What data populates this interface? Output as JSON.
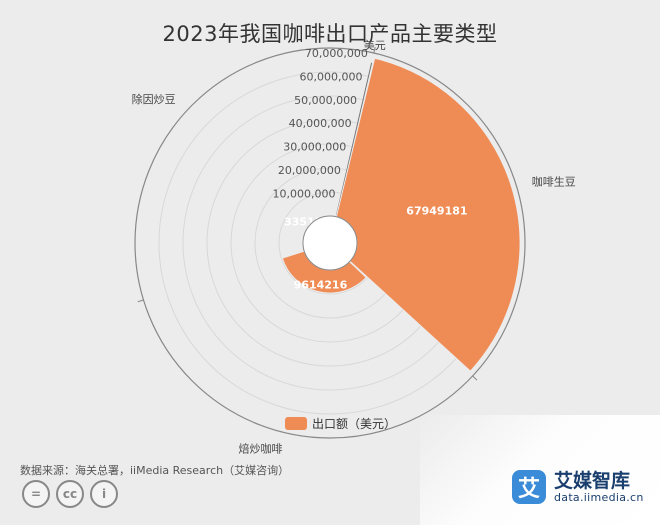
{
  "chart_data": {
    "type": "polar-bar",
    "title": "2023年我国咖啡出口产品主要类型",
    "categories": [
      "咖啡生豆",
      "焙炒咖啡",
      "除因炒豆"
    ],
    "series": [
      {
        "name": "出口额（美元）",
        "values": [
          67949181,
          9614216,
          335159
        ],
        "color": "#ef8b55"
      }
    ],
    "radial_ticks": [
      "0",
      "10,000,000",
      "20,000,000",
      "30,000,000",
      "40,000,000",
      "50,000,000",
      "60,000,000",
      "70,000,000"
    ],
    "radial_max": 70000000,
    "radial_unit": "美元",
    "data_labels": [
      "67949181",
      "9614216",
      "335159"
    ],
    "legend_position": "bottom"
  },
  "source": "数据来源：海关总署，iiMedia Research（艾媒咨询）",
  "license_icons": [
    "equal-icon",
    "cc-icon",
    "person-icon"
  ],
  "license_glyphs": [
    "=",
    "cc",
    "i"
  ],
  "brand": {
    "name": "艾媒智库",
    "url": "data.iimedia.cn",
    "logo": "艾"
  }
}
